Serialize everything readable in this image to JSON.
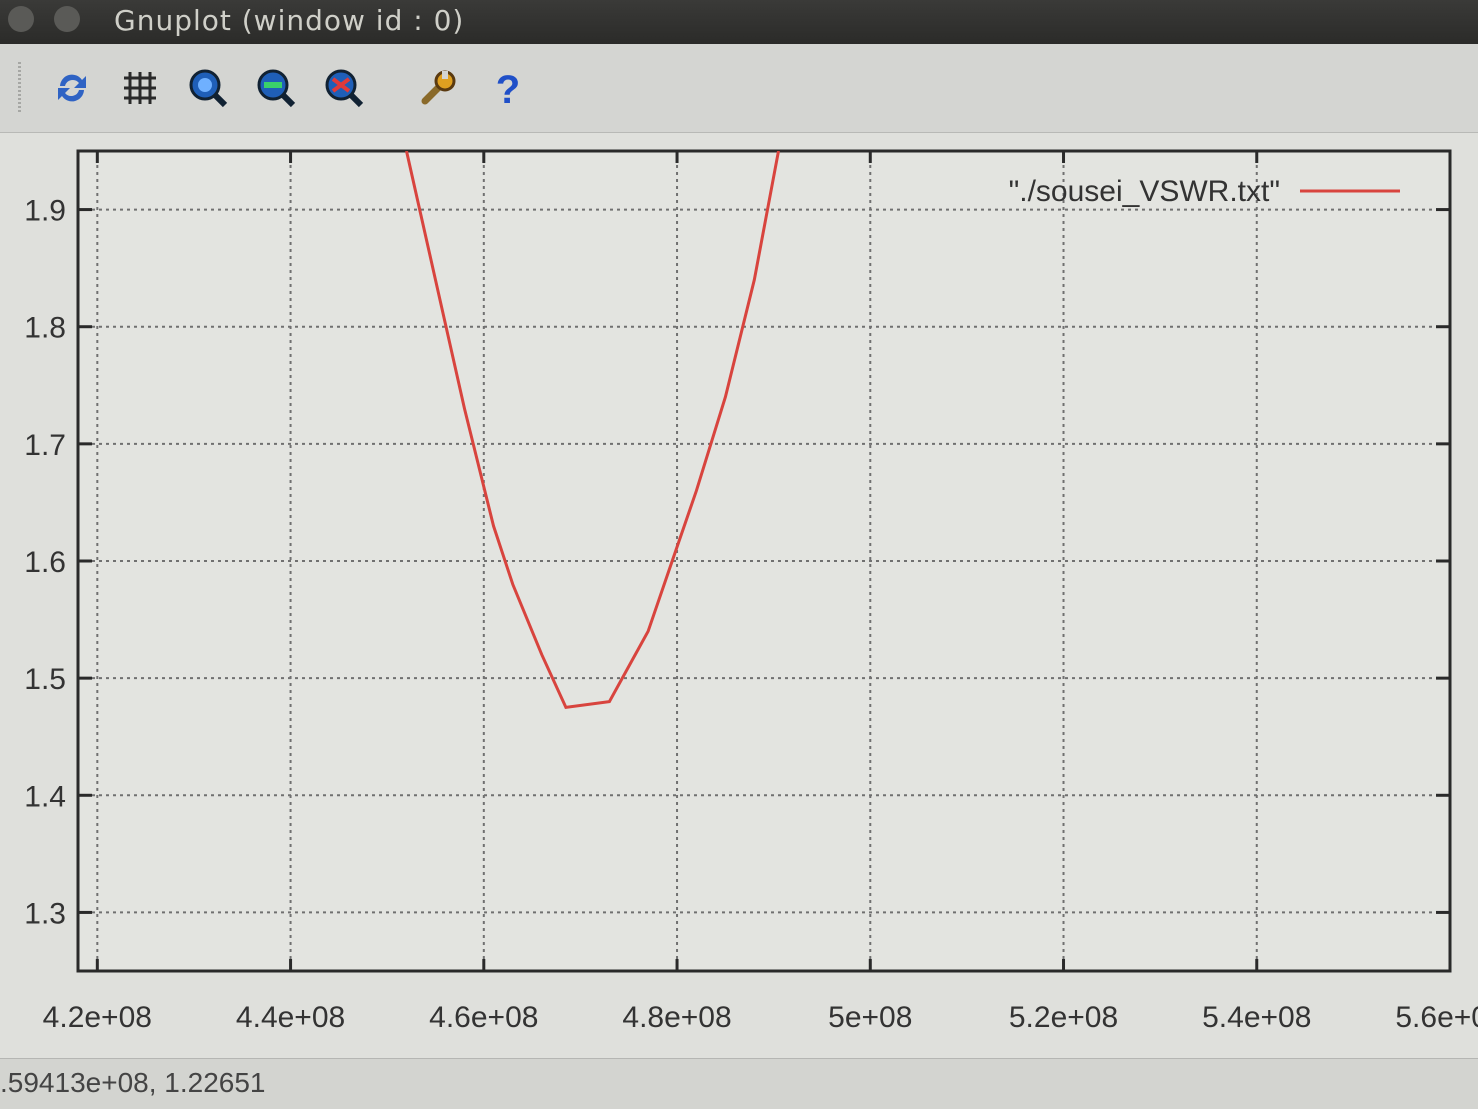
{
  "window": {
    "title": "Gnuplot (window id : 0)"
  },
  "toolbar": {
    "buttons": [
      {
        "name": "replot-button",
        "icon": "refresh-icon"
      },
      {
        "name": "grid-button",
        "icon": "grid-icon"
      },
      {
        "name": "zoom-prev-button",
        "icon": "zoom-prev-icon"
      },
      {
        "name": "zoom-next-button",
        "icon": "zoom-next-icon"
      },
      {
        "name": "unzoom-button",
        "icon": "unzoom-icon"
      },
      {
        "name": "settings-button",
        "icon": "wrench-icon"
      },
      {
        "name": "help-button",
        "icon": "help-icon"
      }
    ]
  },
  "status": {
    "coords": ".59413e+08, 1.22651"
  },
  "chart_data": {
    "type": "line",
    "title": "",
    "xlabel": "",
    "ylabel": "",
    "xlim": [
      418000000,
      560000000
    ],
    "ylim": [
      1.25,
      1.95
    ],
    "xticks": [
      420000000,
      440000000,
      460000000,
      480000000,
      500000000,
      520000000,
      540000000,
      560000000
    ],
    "xtick_labels": [
      "4.2e+08",
      "4.4e+08",
      "4.6e+08",
      "4.8e+08",
      "5e+08",
      "5.2e+08",
      "5.4e+08",
      "5.6e+08"
    ],
    "yticks": [
      1.3,
      1.4,
      1.5,
      1.6,
      1.7,
      1.8,
      1.9
    ],
    "ytick_labels": [
      "1.3",
      "1.4",
      "1.5",
      "1.6",
      "1.7",
      "1.8",
      "1.9"
    ],
    "grid": true,
    "legend": "top-right",
    "series": [
      {
        "name": "\"./sousei_VSWR.txt\"",
        "color": "#d8443e",
        "x": [
          452000000,
          455000000,
          458000000,
          461000000,
          463000000,
          466000000,
          468500000,
          473000000,
          477000000,
          479500000,
          482000000,
          485000000,
          488000000,
          490500000
        ],
        "y": [
          1.95,
          1.84,
          1.73,
          1.63,
          1.58,
          1.52,
          1.475,
          1.48,
          1.54,
          1.6,
          1.66,
          1.74,
          1.84,
          1.95
        ]
      }
    ]
  }
}
